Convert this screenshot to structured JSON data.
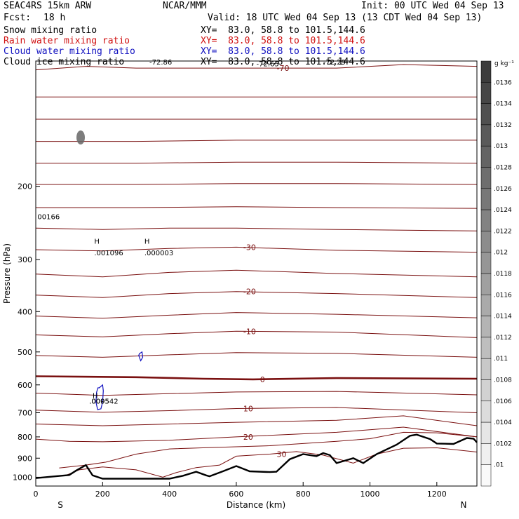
{
  "header": {
    "model": "SEAC4RS 15km ARW",
    "center": "NCAR/MMM",
    "init": "Init: 00 UTC Wed 04 Sep 13",
    "fcst_label": "Fcst:",
    "fcst_value": "18 h",
    "valid": "Valid: 18 UTC Wed 04 Sep 13 (13 CDT Wed 04 Sep 13)",
    "fields": [
      {
        "name": "Snow mixing ratio",
        "xy": "XY=  83.0, 58.8 to 101.5,144.6",
        "color": "#000000"
      },
      {
        "name": "Rain water mixing ratio",
        "xy": "XY=  83.0, 58.8 to 101.5,144.6",
        "color": "#d01010"
      },
      {
        "name": "Cloud water mixing ratio",
        "xy": "XY=  83.0, 58.8 to 101.5,144.6",
        "color": "#1010c0"
      },
      {
        "name": "Cloud ice mixing ratio",
        "xy": "XY=  83.0, 58.8 to 101.5,144.6",
        "color": "#000000"
      }
    ]
  },
  "chart_data": {
    "type": "cross-section",
    "xlabel": "Distance (km)",
    "ylabel": "Pressure (hPa)",
    "xlim": [
      0,
      1320
    ],
    "ylim": [
      1050,
      100
    ],
    "y_scale": "log",
    "x_ticks": [
      "0",
      "200",
      "400",
      "600",
      "800",
      "1000",
      "1200"
    ],
    "y_ticks": [
      "200",
      "300",
      "400",
      "500",
      "600",
      "700",
      "800",
      "900",
      "1000"
    ],
    "y_tick_values": [
      200,
      300,
      400,
      500,
      600,
      700,
      800,
      900,
      1000
    ],
    "x_tick_values": [
      0,
      200,
      400,
      600,
      800,
      1000,
      1200
    ],
    "left_end_label": "S",
    "right_end_label": "N",
    "colorbar": {
      "unit": "g kg⁻¹",
      "labels": [
        ".0136",
        ".0134",
        ".0132",
        ".013",
        ".0128",
        ".0126",
        ".0124",
        ".0122",
        ".012",
        ".0118",
        ".0116",
        ".0114",
        ".0112",
        ".011",
        ".0108",
        ".0106",
        ".0104",
        ".0102",
        ".01"
      ]
    },
    "temperature_contours": [
      {
        "label": "-70",
        "points": [
          [
            0,
            105
          ],
          [
            150,
            103
          ],
          [
            300,
            104
          ],
          [
            500,
            104
          ],
          [
            700,
            104
          ],
          [
            900,
            104
          ],
          [
            1100,
            102
          ],
          [
            1320,
            103
          ]
        ]
      },
      {
        "label": "",
        "points": [
          [
            0,
            122
          ],
          [
            300,
            122
          ],
          [
            600,
            122
          ],
          [
            900,
            122
          ],
          [
            1320,
            122
          ]
        ]
      },
      {
        "label": "",
        "points": [
          [
            0,
            138
          ],
          [
            300,
            138
          ],
          [
            600,
            138
          ],
          [
            900,
            138
          ],
          [
            1320,
            138
          ]
        ]
      },
      {
        "label": "",
        "points": [
          [
            0,
            156
          ],
          [
            300,
            156
          ],
          [
            600,
            155
          ],
          [
            900,
            155
          ],
          [
            1320,
            155
          ]
        ]
      },
      {
        "label": "",
        "points": [
          [
            0,
            176
          ],
          [
            300,
            176
          ],
          [
            600,
            175
          ],
          [
            900,
            175
          ],
          [
            1320,
            176
          ]
        ]
      },
      {
        "label": "",
        "points": [
          [
            0,
            198
          ],
          [
            300,
            198
          ],
          [
            600,
            197
          ],
          [
            900,
            197
          ],
          [
            1320,
            198
          ]
        ]
      },
      {
        "label": "",
        "points": [
          [
            0,
            225
          ],
          [
            300,
            225
          ],
          [
            600,
            224
          ],
          [
            900,
            225
          ],
          [
            1320,
            226
          ]
        ]
      },
      {
        "label": "",
        "points": [
          [
            0,
            252
          ],
          [
            200,
            254
          ],
          [
            400,
            252
          ],
          [
            600,
            252
          ],
          [
            900,
            254
          ],
          [
            1320,
            256
          ]
        ]
      },
      {
        "label": "-30",
        "points": [
          [
            0,
            284
          ],
          [
            200,
            286
          ],
          [
            400,
            282
          ],
          [
            600,
            280
          ],
          [
            900,
            285
          ],
          [
            1320,
            288
          ]
        ]
      },
      {
        "label": "",
        "points": [
          [
            0,
            325
          ],
          [
            200,
            330
          ],
          [
            400,
            322
          ],
          [
            600,
            318
          ],
          [
            900,
            324
          ],
          [
            1320,
            330
          ]
        ]
      },
      {
        "label": "-20",
        "points": [
          [
            0,
            365
          ],
          [
            200,
            370
          ],
          [
            400,
            362
          ],
          [
            600,
            358
          ],
          [
            900,
            362
          ],
          [
            1320,
            370
          ]
        ]
      },
      {
        "label": "",
        "points": [
          [
            0,
            410
          ],
          [
            200,
            415
          ],
          [
            400,
            408
          ],
          [
            600,
            402
          ],
          [
            900,
            406
          ],
          [
            1320,
            414
          ]
        ]
      },
      {
        "label": "-10",
        "points": [
          [
            0,
            455
          ],
          [
            200,
            460
          ],
          [
            400,
            452
          ],
          [
            600,
            446
          ],
          [
            900,
            448
          ],
          [
            1320,
            462
          ]
        ]
      },
      {
        "label": "",
        "points": [
          [
            0,
            510
          ],
          [
            200,
            515
          ],
          [
            400,
            508
          ],
          [
            600,
            502
          ],
          [
            900,
            504
          ],
          [
            1320,
            515
          ]
        ]
      },
      {
        "label": "0",
        "bold": true,
        "points": [
          [
            0,
            572
          ],
          [
            300,
            575
          ],
          [
            500,
            580
          ],
          [
            650,
            582
          ],
          [
            900,
            578
          ],
          [
            1320,
            580
          ]
        ]
      },
      {
        "label": "",
        "points": [
          [
            0,
            628
          ],
          [
            200,
            636
          ],
          [
            400,
            630
          ],
          [
            600,
            624
          ],
          [
            900,
            622
          ],
          [
            1320,
            634
          ]
        ]
      },
      {
        "label": "10",
        "points": [
          [
            0,
            690
          ],
          [
            200,
            698
          ],
          [
            400,
            692
          ],
          [
            600,
            684
          ],
          [
            900,
            680
          ],
          [
            1320,
            700
          ]
        ]
      },
      {
        "label": "",
        "points": [
          [
            0,
            745
          ],
          [
            200,
            752
          ],
          [
            400,
            745
          ],
          [
            600,
            738
          ],
          [
            900,
            730
          ],
          [
            1100,
            712
          ],
          [
            1320,
            752
          ]
        ]
      },
      {
        "label": "20",
        "points": [
          [
            0,
            810
          ],
          [
            100,
            820
          ],
          [
            200,
            822
          ],
          [
            400,
            815
          ],
          [
            600,
            800
          ],
          [
            900,
            780
          ],
          [
            1100,
            758
          ],
          [
            1320,
            800
          ]
        ]
      },
      {
        "label": "",
        "points": [
          [
            70,
            950
          ],
          [
            150,
            935
          ],
          [
            210,
            920
          ],
          [
            300,
            880
          ],
          [
            400,
            855
          ],
          [
            500,
            850
          ],
          [
            600,
            845
          ],
          [
            700,
            840
          ],
          [
            800,
            830
          ],
          [
            900,
            820
          ],
          [
            1000,
            808
          ],
          [
            1100,
            780
          ],
          [
            1200,
            782
          ],
          [
            1320,
            800
          ]
        ]
      },
      {
        "label": "30",
        "points": [
          [
            90,
            990
          ],
          [
            130,
            960
          ],
          [
            200,
            945
          ],
          [
            300,
            960
          ],
          [
            380,
            1000
          ],
          [
            420,
            975
          ],
          [
            480,
            948
          ],
          [
            550,
            935
          ],
          [
            600,
            890
          ],
          [
            700,
            880
          ],
          [
            780,
            868
          ],
          [
            860,
            885
          ],
          [
            950,
            925
          ],
          [
            1020,
            880
          ],
          [
            1100,
            852
          ],
          [
            1200,
            850
          ],
          [
            1320,
            870
          ]
        ]
      }
    ],
    "terrain": [
      [
        0,
        1005
      ],
      [
        60,
        995
      ],
      [
        100,
        988
      ],
      [
        120,
        965
      ],
      [
        150,
        935
      ],
      [
        170,
        990
      ],
      [
        200,
        1008
      ],
      [
        300,
        1008
      ],
      [
        400,
        1008
      ],
      [
        440,
        992
      ],
      [
        480,
        970
      ],
      [
        510,
        990
      ],
      [
        520,
        995
      ],
      [
        560,
        968
      ],
      [
        600,
        940
      ],
      [
        640,
        968
      ],
      [
        700,
        972
      ],
      [
        720,
        970
      ],
      [
        760,
        905
      ],
      [
        800,
        880
      ],
      [
        840,
        890
      ],
      [
        860,
        875
      ],
      [
        880,
        885
      ],
      [
        900,
        925
      ],
      [
        920,
        915
      ],
      [
        950,
        900
      ],
      [
        980,
        925
      ],
      [
        1020,
        880
      ],
      [
        1080,
        835
      ],
      [
        1120,
        795
      ],
      [
        1140,
        790
      ],
      [
        1180,
        810
      ],
      [
        1200,
        830
      ],
      [
        1250,
        832
      ],
      [
        1290,
        805
      ],
      [
        1310,
        808
      ],
      [
        1320,
        825
      ]
    ],
    "rain_contour": [
      [
        310,
        505
      ],
      [
        318,
        500
      ],
      [
        320,
        515
      ],
      [
        314,
        525
      ],
      [
        308,
        510
      ]
    ],
    "cloud_water_contour": [
      [
        190,
        610
      ],
      [
        200,
        600
      ],
      [
        202,
        620
      ],
      [
        200,
        660
      ],
      [
        195,
        685
      ],
      [
        185,
        688
      ],
      [
        180,
        660
      ],
      [
        182,
        625
      ],
      [
        186,
        610
      ]
    ],
    "annotations": [
      {
        "text": "-72.86",
        "x": 340,
        "p": 102
      },
      {
        "text": "-72.65",
        "x": 660,
        "p": 103
      },
      {
        "text": "-72.29",
        "x": 860,
        "p": 102
      },
      {
        "text": "00166",
        "x": 5,
        "p": 240
      },
      {
        "text": "H",
        "x": 175,
        "p": 275
      },
      {
        "text": ".001096",
        "x": 175,
        "p": 293
      },
      {
        "text": "H",
        "x": 325,
        "p": 275
      },
      {
        "text": ".000003",
        "x": 325,
        "p": 293
      },
      {
        "text": "H",
        "x": 170,
        "p": 645
      },
      {
        "text": ".000542",
        "x": 160,
        "p": 665
      },
      {
        "text": ".0095",
        "x": 160,
        "p": 665
      }
    ]
  }
}
